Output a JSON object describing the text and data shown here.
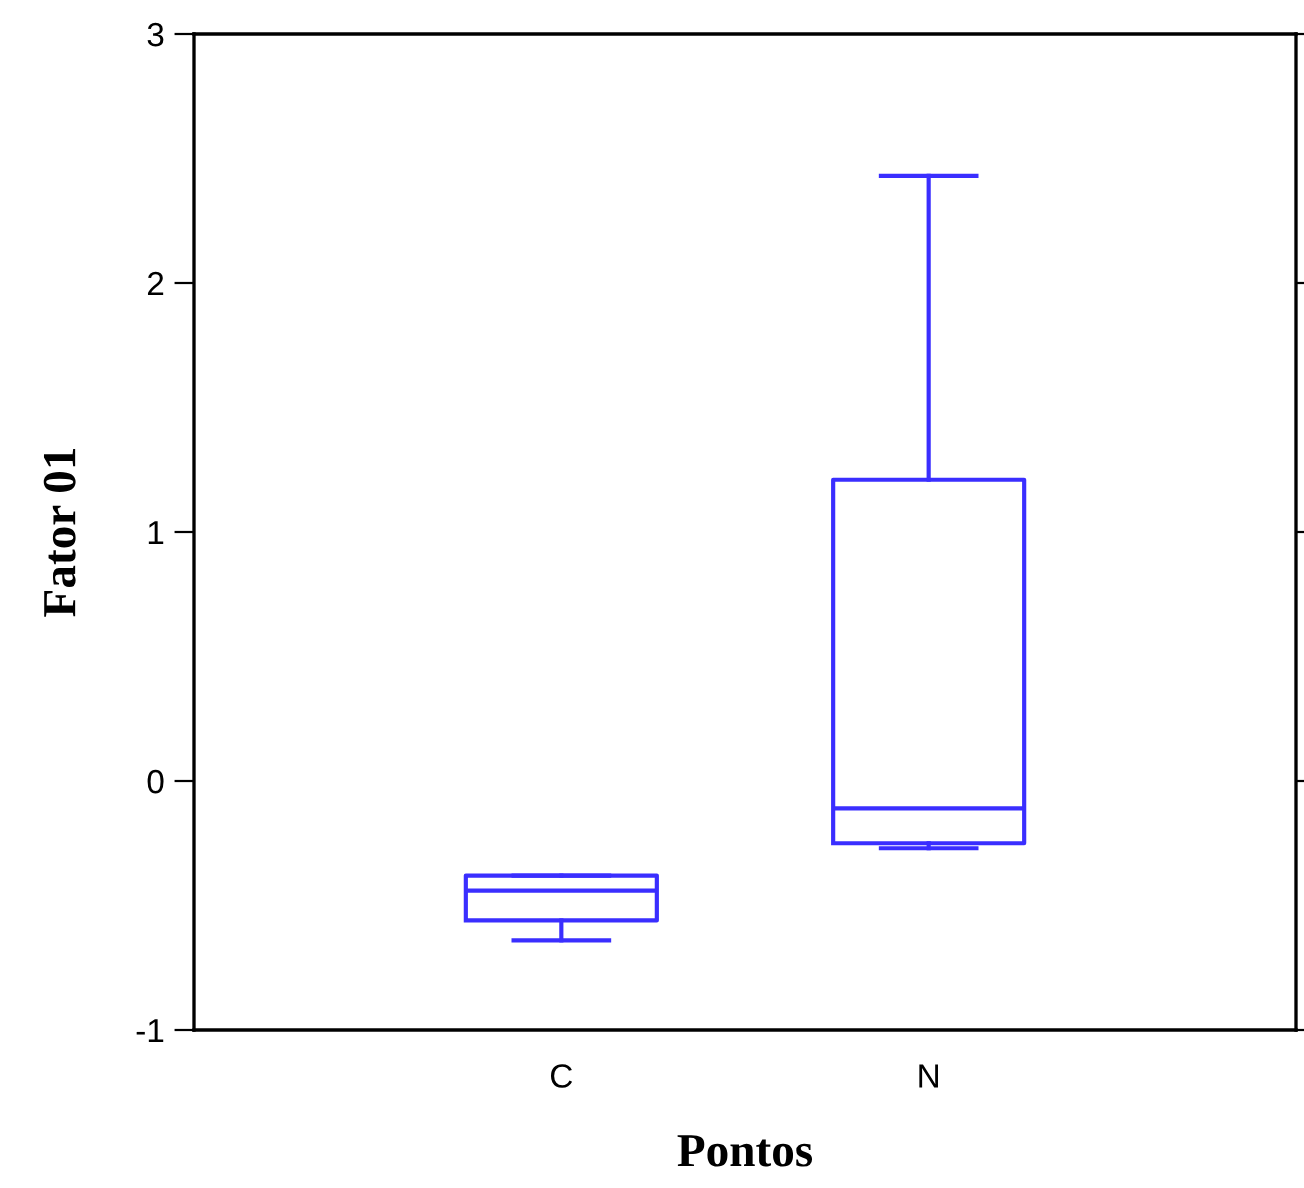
{
  "chart_data": {
    "type": "box",
    "xlabel": "Pontos",
    "ylabel": "Fator 01",
    "categories": [
      "C",
      "N"
    ],
    "series": [
      {
        "color": "#3a2eff",
        "boxes": [
          {
            "low": -0.64,
            "q1": -0.56,
            "median": -0.44,
            "q3": -0.38,
            "high": -0.38
          },
          {
            "low": -0.27,
            "q1": -0.25,
            "median": -0.11,
            "q3": 1.21,
            "high": 2.43
          }
        ]
      }
    ],
    "ylim": [
      -1,
      3
    ],
    "yticks": [
      -1,
      0,
      1,
      2,
      3
    ],
    "grid": false
  }
}
